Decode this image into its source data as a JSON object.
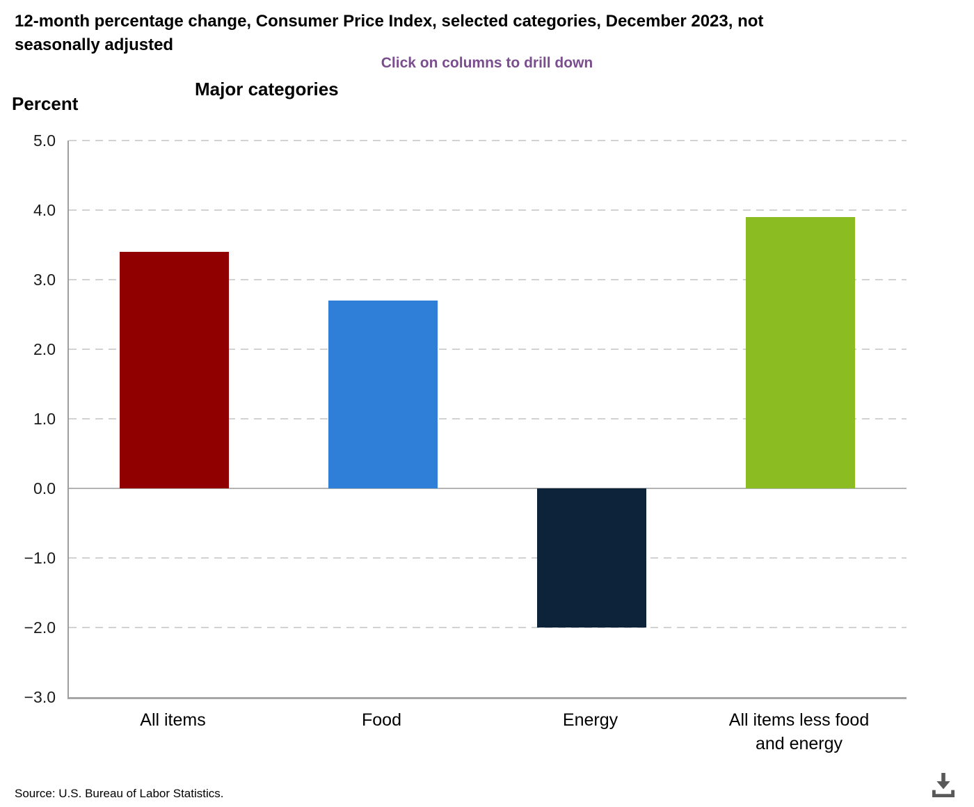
{
  "header": {
    "title": "12-month percentage change, Consumer Price Index, selected categories, December 2023, not\nseasonally adjusted",
    "subtitle": "Click on columns to drill down",
    "group_title": "Major categories",
    "axis_title": "Percent"
  },
  "source_text": "Source: U.S. Bureau of Labor Statistics.",
  "icons": {
    "download": "download-arrow-into-tray"
  },
  "colors": {
    "title": "#000000",
    "subtitle_purple": "#7a4e8e",
    "grid": "#d2d2d2",
    "zero_line": "#b3b3b3",
    "axis": "#9e9e9e",
    "icon_gray": "#595959"
  },
  "chart_data": {
    "type": "bar",
    "title": "Major categories",
    "subtitle": "Click on columns to drill down",
    "xlabel": "",
    "ylabel": "Percent",
    "categories": [
      "All items",
      "Food",
      "Energy",
      "All items less food and energy"
    ],
    "values": [
      3.4,
      2.7,
      -2.0,
      3.9
    ],
    "bar_colors": [
      "#910000",
      "#2f7ed8",
      "#0d233a",
      "#8bbc21"
    ],
    "xlabels_display": [
      "All items",
      "Food",
      "Energy",
      "All items less food\nand energy"
    ],
    "yticks": [
      5,
      4,
      3,
      2,
      1,
      0,
      -1,
      -2,
      -3
    ],
    "ytick_labels": [
      "5.0",
      "4.0",
      "3.0",
      "2.0",
      "1.0",
      "0.0",
      "−1.0",
      "−2.0",
      "−3.0"
    ],
    "ylim": [
      -3,
      5
    ],
    "grid": true,
    "grid_style": "dashed",
    "legend": false,
    "period": "December 2023"
  }
}
